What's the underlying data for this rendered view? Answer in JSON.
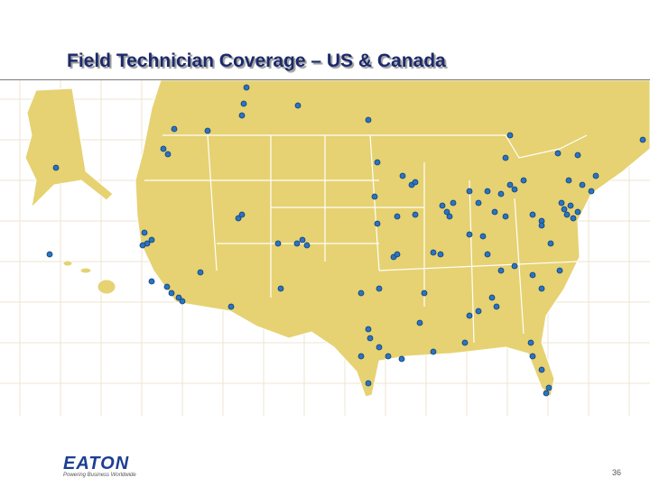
{
  "title": "Field Technician Coverage – US & Canada",
  "footer": {
    "logo": "EATON",
    "tagline": "Powering Business Worldwide",
    "page_number": 36
  }
}
